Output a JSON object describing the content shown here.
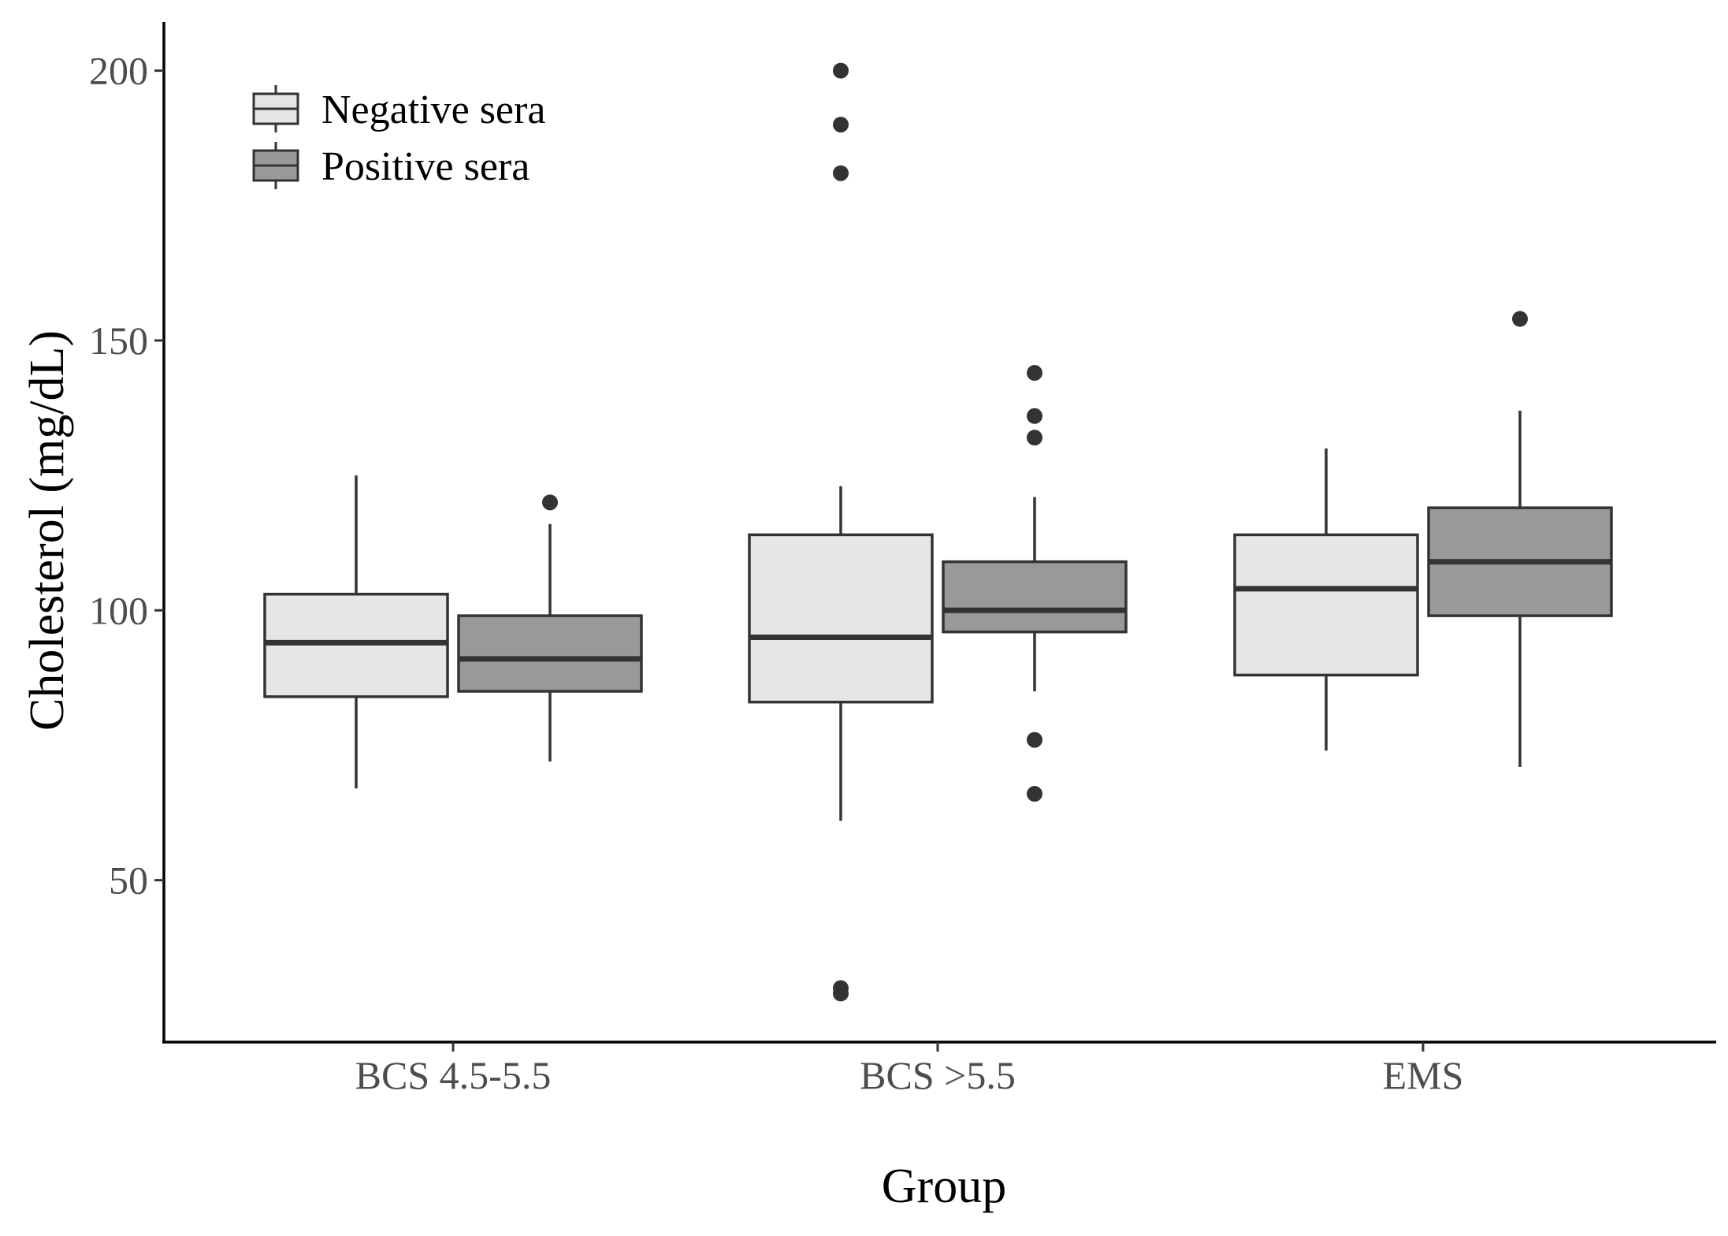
{
  "chart_data": {
    "type": "box",
    "xlabel": "Group",
    "ylabel": "Cholesterol (mg/dL)",
    "ylim": [
      20,
      209
    ],
    "yticks": [
      50,
      100,
      150,
      200
    ],
    "categories": [
      "BCS 4.5-5.5",
      "BCS >5.5",
      "EMS"
    ],
    "legend": {
      "position": "top-left"
    },
    "series": [
      {
        "name": "Negative sera",
        "fill": "#e6e6e6",
        "boxes": [
          {
            "whisker_low": 67,
            "q1": 84,
            "median": 94,
            "q3": 103,
            "whisker_high": 125,
            "outliers": []
          },
          {
            "whisker_low": 61,
            "q1": 83,
            "median": 95,
            "q3": 114,
            "whisker_high": 123,
            "outliers": [
              200,
              190,
              181,
              30,
              29
            ]
          },
          {
            "whisker_low": 74,
            "q1": 88,
            "median": 104,
            "q3": 114,
            "whisker_high": 130,
            "outliers": []
          }
        ]
      },
      {
        "name": "Positive sera",
        "fill": "#999999",
        "boxes": [
          {
            "whisker_low": 72,
            "q1": 85,
            "median": 91,
            "q3": 99,
            "whisker_high": 116,
            "outliers": [
              120
            ]
          },
          {
            "whisker_low": 85,
            "q1": 96,
            "median": 100,
            "q3": 109,
            "whisker_high": 121,
            "outliers": [
              144,
              136,
              132,
              76,
              66
            ]
          },
          {
            "whisker_low": 71,
            "q1": 99,
            "median": 109,
            "q3": 119,
            "whisker_high": 137,
            "outliers": [
              154
            ]
          }
        ]
      }
    ]
  }
}
